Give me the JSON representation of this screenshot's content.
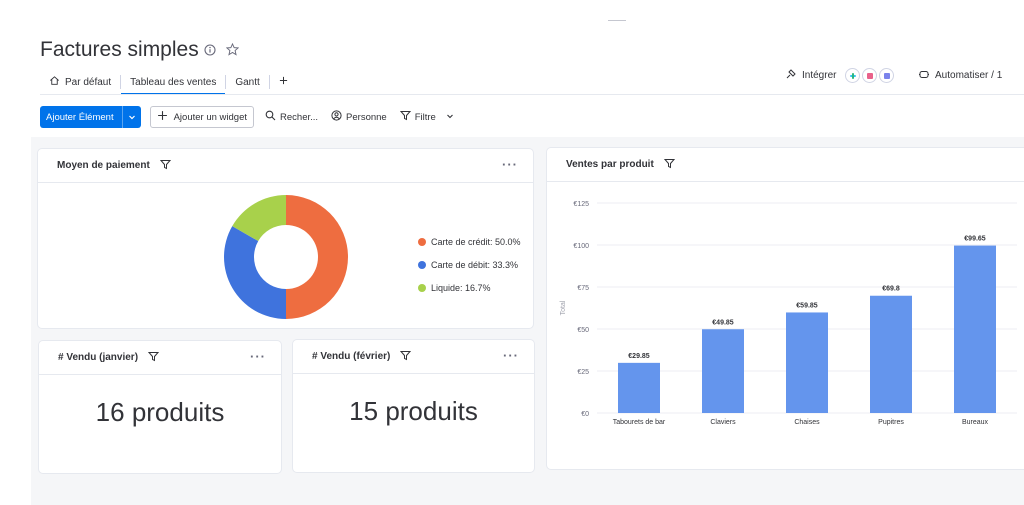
{
  "board": {
    "title": "Factures simples"
  },
  "tabs": [
    {
      "label": "Par défaut",
      "active": false
    },
    {
      "label": "Tableau des ventes",
      "active": true
    },
    {
      "label": "Gantt",
      "active": false
    }
  ],
  "header_actions": {
    "integrate": "Intégrer",
    "automate": "Automatiser / 1"
  },
  "toolbar": {
    "add_item": "Ajouter Élément",
    "add_widget": "Ajouter un widget",
    "search": "Recher...",
    "person": "Personne",
    "filter": "Filtre"
  },
  "widgets": {
    "payment": {
      "title": "Moyen de paiement",
      "legend": [
        {
          "label": "Carte de crédit: 50.0%",
          "color": "#ee6d40"
        },
        {
          "label": "Carte de débit: 33.3%",
          "color": "#3f73dd"
        },
        {
          "label": "Liquide: 16.7%",
          "color": "#a8d14b"
        }
      ]
    },
    "sold_jan": {
      "title": "# Vendu (janvier)",
      "value": "16 produits"
    },
    "sold_feb": {
      "title": "# Vendu (février)",
      "value": "15 produits"
    },
    "sales": {
      "title": "Ventes par produit"
    }
  },
  "chart_data": [
    {
      "type": "pie",
      "title": "Moyen de paiement",
      "categories": [
        "Carte de crédit",
        "Carte de débit",
        "Liquide"
      ],
      "values": [
        50.0,
        33.3,
        16.7
      ],
      "colors": [
        "#ee6d40",
        "#3f73dd",
        "#a8d14b"
      ],
      "donut": true
    },
    {
      "type": "bar",
      "title": "Ventes par produit",
      "categories": [
        "Tabourets de bar",
        "Claviers",
        "Chaises",
        "Pupitres",
        "Bureaux"
      ],
      "values": [
        29.85,
        49.85,
        59.85,
        69.8,
        99.65
      ],
      "data_labels": [
        "€29.85",
        "€49.85",
        "€59.85",
        "€69.8",
        "€99.65"
      ],
      "ylabel": "Total",
      "yticks": [
        "€0",
        "€25",
        "€50",
        "€75",
        "€100",
        "€125"
      ],
      "ylim": [
        0,
        125
      ],
      "color": "#6495ed"
    }
  ]
}
